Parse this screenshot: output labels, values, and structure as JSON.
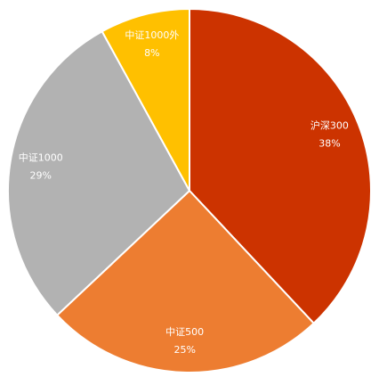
{
  "chart_data": {
    "type": "pie",
    "categories": [
      "沪深300",
      "中证500",
      "中证1000",
      "中证1000外"
    ],
    "values": [
      38,
      25,
      29,
      8
    ],
    "value_labels": [
      "38%",
      "25%",
      "29%",
      "8%"
    ],
    "colors": [
      "#cc3300",
      "#ed7d31",
      "#b2b2b2",
      "#ffc000"
    ]
  }
}
